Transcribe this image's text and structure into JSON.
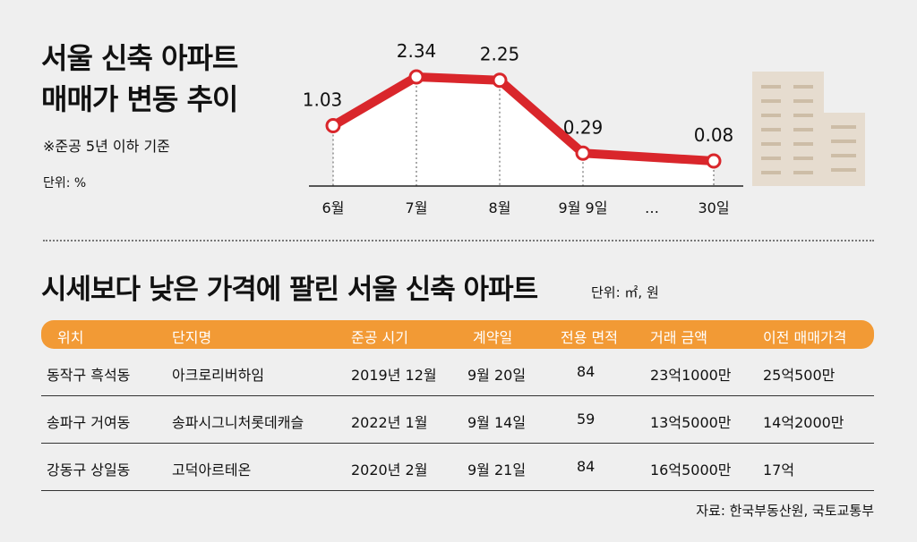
{
  "title_lines": [
    "서울 신축 아파트",
    "매매가 변동 추이"
  ],
  "note": "※준공 5년 이하 기준",
  "chart_unit": "단위: %",
  "chart_data": {
    "type": "line",
    "categories": [
      "6월",
      "7월",
      "8월",
      "9월 9일",
      "…",
      "30일"
    ],
    "points": [
      {
        "category": "6월",
        "value": 1.03,
        "label": "1.03"
      },
      {
        "category": "7월",
        "value": 2.34,
        "label": "2.34"
      },
      {
        "category": "8월",
        "value": 2.25,
        "label": "2.25"
      },
      {
        "category": "9월 9일",
        "value": 0.29,
        "label": "0.29"
      },
      {
        "category": "30일",
        "value": 0.08,
        "label": "0.08"
      }
    ],
    "line_color": "#d9262b"
  },
  "table_title": "시세보다 낮은 가격에 팔린 서울 신축 아파트",
  "table_unit": "단위: ㎡, 원",
  "table": {
    "headers": [
      "위치",
      "단지명",
      "준공 시기",
      "계약일",
      "전용 면적",
      "거래 금액",
      "이전 매매가격"
    ],
    "rows": [
      [
        "동작구 흑석동",
        "아크로리버하임",
        "2019년 12월",
        "9월 20일",
        "84",
        "23억1000만",
        "25억500만"
      ],
      [
        "송파구 거여동",
        "송파시그니처롯데캐슬",
        "2022년 1월",
        "9월 14일",
        "59",
        "13억5000만",
        "14억2000만"
      ],
      [
        "강동구 상일동",
        "고덕아르테온",
        "2020년 2월",
        "9월 21일",
        "84",
        "16억5000만",
        "17억"
      ]
    ],
    "header_color": "#f29a35"
  },
  "source": "자료: 한국부동산원, 국토교통부"
}
